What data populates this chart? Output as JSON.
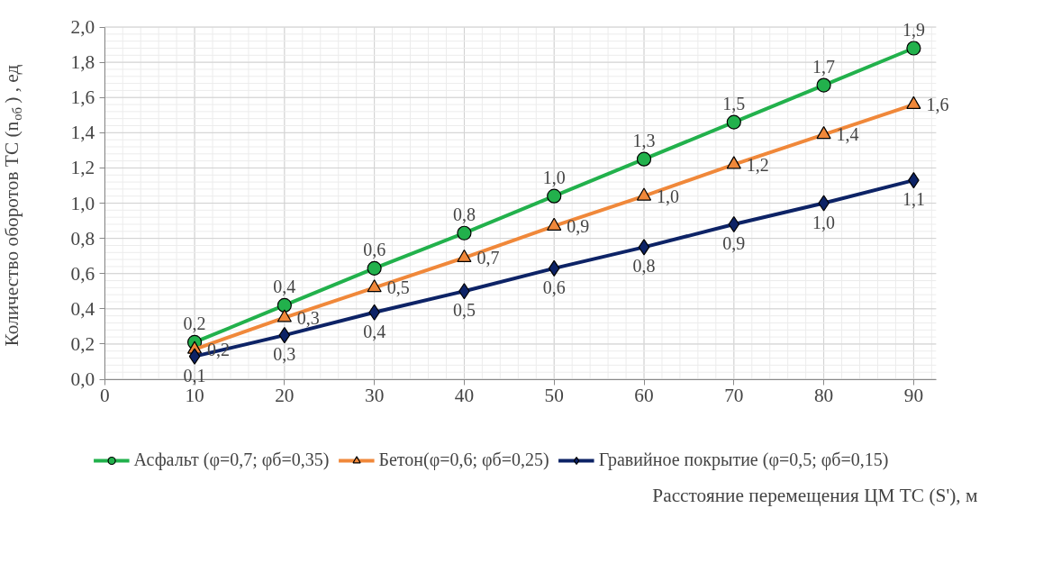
{
  "chart_data": {
    "type": "line",
    "xlabel": "Расстояние перемещения ЦМ ТС (S'), м",
    "ylabel": "Количество оборотов ТС (n$_{об}$) , ед",
    "x": [
      10,
      20,
      30,
      40,
      50,
      60,
      70,
      80,
      90
    ],
    "series": [
      {
        "name": "Асфальт (φ=0,7; φб=0,35)",
        "color": "#22b14c",
        "marker": "circle",
        "values": [
          0.21,
          0.42,
          0.63,
          0.83,
          1.04,
          1.25,
          1.46,
          1.67,
          1.88
        ],
        "value_labels": [
          "0,2",
          "0,4",
          "0,6",
          "0,8",
          "1,0",
          "1,3",
          "1,5",
          "1,7",
          "1,9"
        ]
      },
      {
        "name": "Бетон(φ=0,6; φб=0,25)",
        "color": "#f0883a",
        "marker": "triangle",
        "values": [
          0.17,
          0.35,
          0.52,
          0.69,
          0.87,
          1.04,
          1.22,
          1.39,
          1.56
        ],
        "value_labels": [
          "0,2",
          "0,3",
          "0,5",
          "0,7",
          "0,9",
          "1,0",
          "1,2",
          "1,4",
          "1,6"
        ]
      },
      {
        "name": "Гравийное покрытие (φ=0,5; φб=0,15)",
        "color": "#0d2366",
        "marker": "diamond",
        "values": [
          0.13,
          0.25,
          0.38,
          0.5,
          0.63,
          0.75,
          0.88,
          1.0,
          1.13
        ],
        "value_labels": [
          "0,1",
          "0,3",
          "0,4",
          "0,5",
          "0,6",
          "0,8",
          "0,9",
          "1,0",
          "1,1"
        ]
      }
    ],
    "xlim": [
      0,
      92.5
    ],
    "ylim": [
      0,
      2.0
    ],
    "xticks": [
      0,
      10,
      20,
      30,
      40,
      50,
      60,
      70,
      80,
      90
    ],
    "yticks": [
      {
        "value": 0,
        "label": "0,0"
      },
      {
        "value": 0.2,
        "label": "0,2"
      },
      {
        "value": 0.4,
        "label": "0,4"
      },
      {
        "value": 0.6,
        "label": "0,6"
      },
      {
        "value": 0.8,
        "label": "0,8"
      },
      {
        "value": 1.0,
        "label": "1,0"
      },
      {
        "value": 1.2,
        "label": "1,2"
      },
      {
        "value": 1.4,
        "label": "1,4"
      },
      {
        "value": 1.6,
        "label": "1,6"
      },
      {
        "value": 1.8,
        "label": "1,8"
      },
      {
        "value": 2.0,
        "label": "2,0"
      }
    ],
    "grid": true,
    "legend": "bottom",
    "line_style": "solid"
  }
}
